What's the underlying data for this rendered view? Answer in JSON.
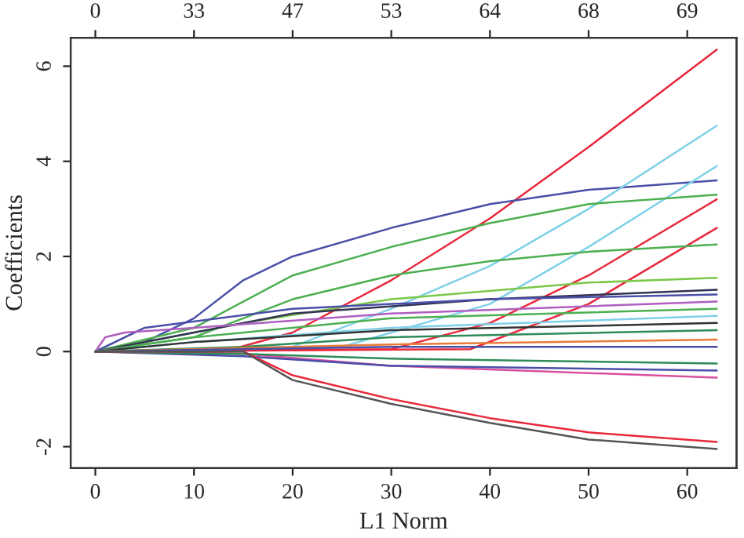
{
  "chart_data": {
    "type": "line",
    "xlabel": "L1 Norm",
    "ylabel": "Coefficients",
    "x2label": null,
    "xlim": [
      -2.5,
      65
    ],
    "ylim": [
      -2.45,
      6.6
    ],
    "xticks": [
      0,
      10,
      20,
      30,
      40,
      50,
      60
    ],
    "yticks": [
      -2,
      0,
      2,
      4,
      6
    ],
    "annotations": [
      "0",
      "33",
      "47",
      "53",
      "64",
      "68",
      "69"
    ],
    "grid": false,
    "marker": "none",
    "line_style": "solid",
    "series": [
      {
        "color": "#e8283a",
        "x": [
          0,
          13,
          20,
          30,
          40,
          50,
          63
        ],
        "values": [
          0,
          0,
          0.4,
          1.5,
          2.8,
          4.3,
          6.35
        ]
      },
      {
        "color": "#4a4fa8",
        "x": [
          0,
          5,
          10,
          15,
          20,
          30,
          40,
          50,
          63
        ],
        "values": [
          0,
          0.2,
          0.7,
          1.5,
          2.0,
          2.6,
          3.1,
          3.4,
          3.6
        ]
      },
      {
        "color": "#7fd0e8",
        "x": [
          0,
          20,
          30,
          40,
          50,
          63
        ],
        "values": [
          0,
          0.1,
          0.9,
          1.8,
          3.0,
          4.75
        ]
      },
      {
        "color": "#7fd0e8",
        "x": [
          0,
          25,
          40,
          50,
          63
        ],
        "values": [
          0,
          0.1,
          1.0,
          2.2,
          3.9
        ]
      },
      {
        "color": "#4caf50",
        "x": [
          0,
          10,
          20,
          30,
          40,
          50,
          63
        ],
        "values": [
          0,
          0.5,
          1.6,
          2.2,
          2.7,
          3.1,
          3.3
        ]
      },
      {
        "color": "#e8283a",
        "x": [
          0,
          30,
          40,
          50,
          63
        ],
        "values": [
          0,
          0.05,
          0.6,
          1.6,
          3.2
        ]
      },
      {
        "color": "#e8283a",
        "x": [
          0,
          38,
          50,
          63
        ],
        "values": [
          0,
          0.05,
          1.0,
          2.6
        ]
      },
      {
        "color": "#4caf50",
        "x": [
          0,
          10,
          20,
          30,
          40,
          50,
          63
        ],
        "values": [
          0,
          0.3,
          1.1,
          1.6,
          1.9,
          2.1,
          2.25
        ]
      },
      {
        "color": "#7cc84a",
        "x": [
          0,
          15,
          30,
          50,
          63
        ],
        "values": [
          0,
          0.6,
          1.1,
          1.45,
          1.55
        ]
      },
      {
        "color": "#333355",
        "x": [
          0,
          10,
          20,
          40,
          63
        ],
        "values": [
          0,
          0.4,
          0.8,
          1.1,
          1.3
        ]
      },
      {
        "color": "#4a4fa8",
        "x": [
          0,
          5,
          20,
          40,
          63
        ],
        "values": [
          0,
          0.5,
          0.9,
          1.1,
          1.2
        ]
      },
      {
        "color": "#b05fc0",
        "x": [
          0,
          1,
          3,
          10,
          30,
          63
        ],
        "values": [
          0,
          0.3,
          0.4,
          0.5,
          0.8,
          1.05
        ]
      },
      {
        "color": "#4caf50",
        "x": [
          0,
          10,
          30,
          63
        ],
        "values": [
          0,
          0.3,
          0.7,
          0.9
        ]
      },
      {
        "color": "#7fd0e8",
        "x": [
          0,
          10,
          30,
          63
        ],
        "values": [
          0,
          0.2,
          0.5,
          0.75
        ]
      },
      {
        "color": "#333333",
        "x": [
          0,
          10,
          30,
          63
        ],
        "values": [
          0,
          0.2,
          0.45,
          0.6
        ]
      },
      {
        "color": "#2e8b57",
        "x": [
          0,
          15,
          30,
          63
        ],
        "values": [
          0,
          0.1,
          0.3,
          0.45
        ]
      },
      {
        "color": "#e87a3a",
        "x": [
          0,
          10,
          30,
          63
        ],
        "values": [
          0,
          0.05,
          0.15,
          0.25
        ]
      },
      {
        "color": "#4a4fa8",
        "x": [
          0,
          15,
          30,
          63
        ],
        "values": [
          0,
          0.05,
          0.1,
          0.1
        ]
      },
      {
        "color": "#d94fa0",
        "x": [
          0,
          15,
          30,
          63
        ],
        "values": [
          0,
          -0.05,
          -0.3,
          -0.55
        ]
      },
      {
        "color": "#4a4fa8",
        "x": [
          0,
          15,
          30,
          63
        ],
        "values": [
          0,
          -0.1,
          -0.3,
          -0.4
        ]
      },
      {
        "color": "#2e8b57",
        "x": [
          0,
          15,
          30,
          63
        ],
        "values": [
          0,
          -0.05,
          -0.15,
          -0.25
        ]
      },
      {
        "color": "#e8283a",
        "x": [
          0,
          15,
          20,
          30,
          40,
          50,
          63
        ],
        "values": [
          0,
          0,
          -0.5,
          -1.0,
          -1.4,
          -1.7,
          -1.9
        ]
      },
      {
        "color": "#555555",
        "x": [
          0,
          15,
          20,
          30,
          40,
          50,
          63
        ],
        "values": [
          0,
          0,
          -0.6,
          -1.1,
          -1.5,
          -1.85,
          -2.05
        ]
      }
    ]
  }
}
